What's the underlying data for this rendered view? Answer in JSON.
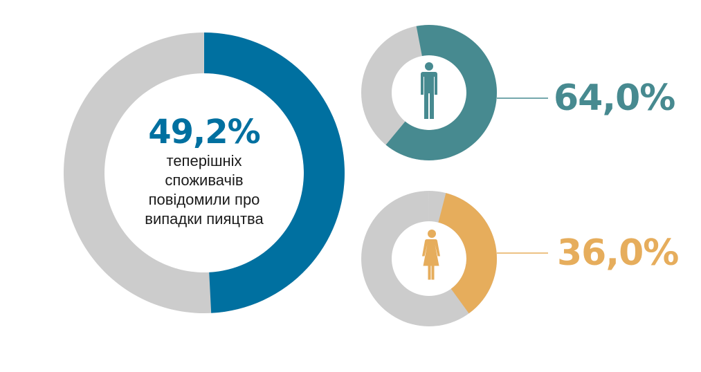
{
  "colors": {
    "total": "#0070a0",
    "men": "#478a90",
    "women": "#e6ad5c",
    "track": "#cccccc",
    "background": "#ffffff"
  },
  "main": {
    "value_text": "49,2%",
    "description_lines": [
      "теперішніх",
      "споживачів",
      "повідомили про",
      "випадки пияцтва"
    ]
  },
  "men": {
    "value_text": "64,0%",
    "icon": "man-icon"
  },
  "women": {
    "value_text": "36,0%",
    "icon": "woman-icon"
  },
  "chart_data": [
    {
      "type": "pie",
      "values": [
        49.2,
        50.8
      ],
      "labels": [
        "49,2%",
        ""
      ]
    },
    {
      "type": "pie",
      "values": [
        64.0,
        36.0
      ],
      "labels": [
        "64,0%",
        ""
      ]
    },
    {
      "type": "pie",
      "values": [
        36.0,
        64.0
      ],
      "labels": [
        "36,0%",
        ""
      ]
    }
  ]
}
